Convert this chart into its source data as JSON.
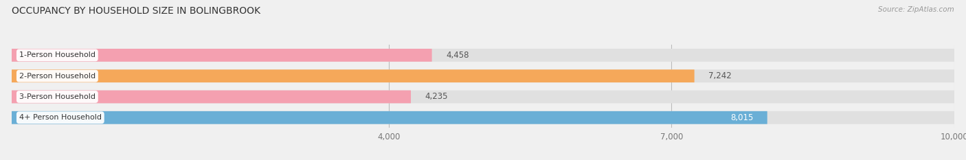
{
  "title": "OCCUPANCY BY HOUSEHOLD SIZE IN BOLINGBROOK",
  "source": "Source: ZipAtlas.com",
  "categories": [
    "1-Person Household",
    "2-Person Household",
    "3-Person Household",
    "4+ Person Household"
  ],
  "values": [
    4458,
    7242,
    4235,
    8015
  ],
  "bar_colors": [
    "#f4a0b0",
    "#f5a85a",
    "#f4a0b0",
    "#6aafd6"
  ],
  "xlim": [
    0,
    10000
  ],
  "xticks": [
    4000,
    7000,
    10000
  ],
  "xtick_labels": [
    "4,000",
    "7,000",
    "10,000"
  ],
  "bar_height": 0.62,
  "background_color": "#f0f0f0",
  "bar_bg_color": "#e0e0e0",
  "value_labels": [
    "4,458",
    "7,242",
    "4,235",
    "8,015"
  ],
  "label_inside_threshold": 7500
}
